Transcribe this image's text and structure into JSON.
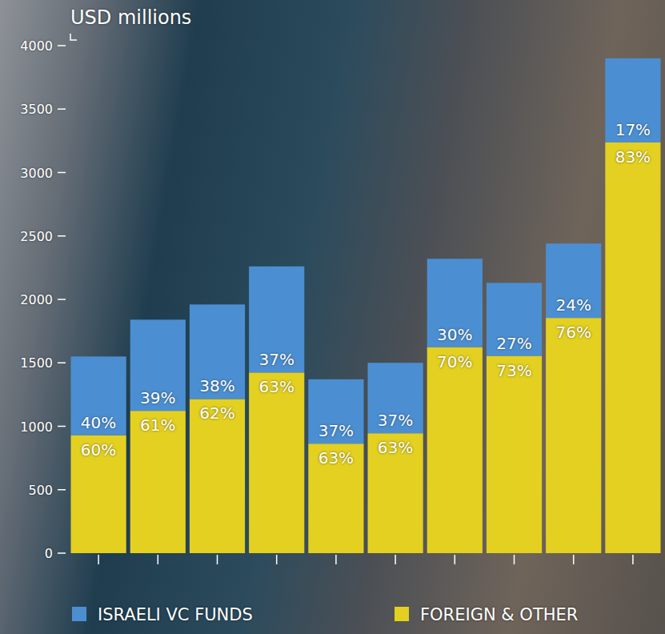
{
  "chart_data": {
    "type": "bar",
    "title": "USD millions",
    "stacked": true,
    "grid": false,
    "legend": "bottom",
    "categories": [
      null,
      null,
      null,
      null,
      null,
      null,
      null,
      null,
      null,
      null
    ],
    "ylim": [
      0,
      4000
    ],
    "yticks": [
      0,
      500,
      1000,
      1500,
      2000,
      2500,
      3000,
      3500,
      4000
    ],
    "series": [
      {
        "name": "FOREIGN & OTHER",
        "color": "#e3d021",
        "values": [
          930,
          1122,
          1215,
          1424,
          863,
          945,
          1624,
          1555,
          1854,
          3237
        ],
        "share_labels": [
          "60%",
          "61%",
          "62%",
          "63%",
          "63%",
          "63%",
          "70%",
          "73%",
          "76%",
          "83%"
        ]
      },
      {
        "name": "ISRAELI VC FUNDS",
        "color": "#4b8fd2",
        "values": [
          620,
          718,
          745,
          836,
          507,
          555,
          696,
          575,
          586,
          663
        ],
        "share_labels": [
          "40%",
          "39%",
          "38%",
          "37%",
          "37%",
          "37%",
          "30%",
          "27%",
          "24%",
          "17%"
        ]
      }
    ]
  }
}
